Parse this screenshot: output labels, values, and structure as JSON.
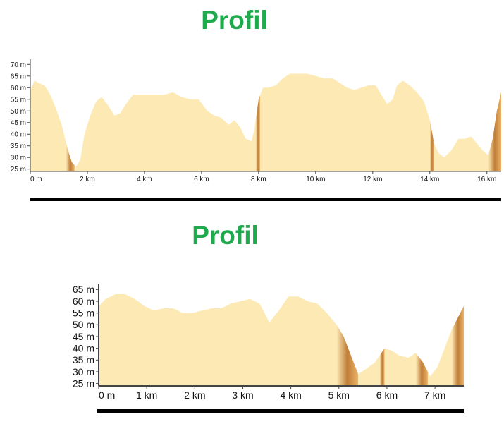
{
  "colors": {
    "title": "#1faa4d",
    "area_fill": "#fde9b4",
    "steep_shade_light": "#e8a95a",
    "steep_shade_dark": "#b56a22",
    "axis": "#444444"
  },
  "chart_data": [
    {
      "type": "area",
      "title": "Profil",
      "xlabel": "",
      "ylabel": "",
      "xlim": [
        0,
        16.5
      ],
      "ylim": [
        24,
        71
      ],
      "x_ticks": [
        0,
        2,
        4,
        6,
        8,
        10,
        12,
        14,
        16
      ],
      "x_tick_labels": [
        "0 m",
        "2 km",
        "4 km",
        "6 km",
        "8 km",
        "10 km",
        "12 km",
        "14 km",
        "16 km"
      ],
      "y_ticks": [
        25,
        30,
        35,
        40,
        45,
        50,
        55,
        60,
        65,
        70
      ],
      "y_tick_labels": [
        "25 m",
        "30 m",
        "35 m",
        "40 m",
        "45 m",
        "50 m",
        "55 m",
        "60 m",
        "65 m",
        "70 m"
      ],
      "grid": false,
      "series": [
        {
          "x": [
            0,
            0.15,
            0.3,
            0.5,
            0.7,
            0.9,
            1.1,
            1.3,
            1.45,
            1.6,
            1.75,
            1.9,
            2.1,
            2.3,
            2.5,
            2.75,
            2.95,
            3.15,
            3.35,
            3.6,
            3.85,
            4.1,
            4.4,
            4.7,
            5.0,
            5.3,
            5.6,
            5.9,
            6.2,
            6.45,
            6.7,
            6.95,
            7.15,
            7.35,
            7.55,
            7.75,
            7.85,
            8.0,
            8.15,
            8.35,
            8.6,
            8.85,
            9.1,
            9.4,
            9.7,
            10.0,
            10.3,
            10.6,
            10.85,
            11.1,
            11.35,
            11.6,
            11.85,
            12.1,
            12.3,
            12.5,
            12.7,
            12.85,
            13.05,
            13.3,
            13.55,
            13.8,
            14.0,
            14.15,
            14.3,
            14.5,
            14.75,
            15.0,
            15.2,
            15.45,
            15.65,
            15.85,
            16.05,
            16.2,
            16.35,
            16.5
          ],
          "y": [
            59,
            63,
            62,
            61,
            57,
            51,
            44,
            34,
            28,
            26,
            29,
            40,
            48,
            54,
            56,
            52,
            48,
            49,
            53,
            57,
            57,
            57,
            57,
            57,
            58,
            56,
            55,
            55,
            50,
            48,
            47,
            44,
            46,
            43,
            38,
            37,
            42,
            55,
            60,
            60,
            61,
            64,
            66,
            66,
            66,
            65,
            64,
            64,
            62,
            60,
            59,
            60,
            61,
            61,
            57,
            53,
            55,
            61,
            63,
            61,
            58,
            54,
            46,
            36,
            32,
            30,
            33,
            38,
            38,
            39,
            36,
            33,
            31,
            38,
            50,
            58
          ]
        }
      ],
      "steep_bands_km": [
        [
          1.25,
          1.55
        ],
        [
          7.9,
          8.05
        ],
        [
          14.0,
          14.15
        ],
        [
          16.05,
          16.5
        ]
      ]
    },
    {
      "type": "area",
      "title": "Profil",
      "xlabel": "",
      "ylabel": "",
      "xlim": [
        0,
        7.6
      ],
      "ylim": [
        24,
        66
      ],
      "x_ticks": [
        0,
        1,
        2,
        3,
        4,
        5,
        6,
        7
      ],
      "x_tick_labels": [
        "0 m",
        "1 km",
        "2 km",
        "3 km",
        "4 km",
        "5 km",
        "6 km",
        "7 km"
      ],
      "y_ticks": [
        25,
        30,
        35,
        40,
        45,
        50,
        55,
        60,
        65
      ],
      "y_tick_labels": [
        "25 m",
        "30 m",
        "35 m",
        "40 m",
        "45 m",
        "50 m",
        "55 m",
        "60 m",
        "65 m"
      ],
      "grid": false,
      "series": [
        {
          "x": [
            0,
            0.15,
            0.35,
            0.55,
            0.75,
            0.95,
            1.15,
            1.35,
            1.55,
            1.75,
            1.95,
            2.15,
            2.35,
            2.55,
            2.75,
            2.95,
            3.15,
            3.35,
            3.55,
            3.75,
            3.95,
            4.15,
            4.35,
            4.55,
            4.75,
            4.95,
            5.1,
            5.25,
            5.4,
            5.55,
            5.75,
            5.95,
            6.1,
            6.25,
            6.45,
            6.6,
            6.75,
            6.9,
            7.05,
            7.2,
            7.35,
            7.6
          ],
          "y": [
            58,
            61,
            63,
            63,
            61,
            58,
            56,
            57,
            57,
            55,
            55,
            56,
            57,
            57,
            59,
            60,
            61,
            59,
            51,
            56,
            62,
            62,
            60,
            59,
            55,
            50,
            45,
            37,
            29,
            31,
            34,
            40,
            39,
            37,
            36,
            38,
            34,
            28,
            32,
            40,
            48,
            58
          ]
        }
      ],
      "steep_bands_km": [
        [
          4.95,
          5.4
        ],
        [
          5.85,
          5.95
        ],
        [
          6.6,
          6.85
        ],
        [
          7.35,
          7.6
        ]
      ]
    }
  ]
}
